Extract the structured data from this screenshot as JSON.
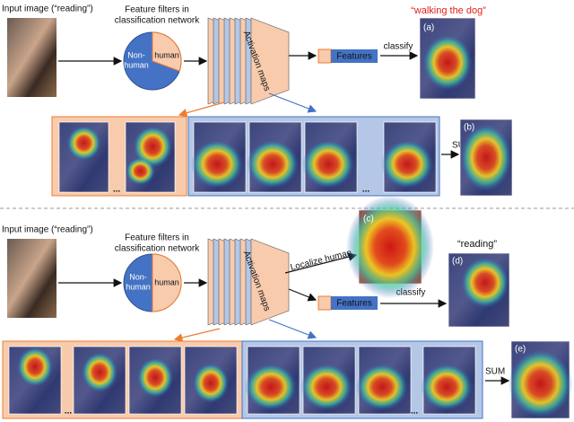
{
  "top": {
    "input_label": "Input image (“reading”)",
    "filters_label": [
      "Feature filters in",
      "classification network"
    ],
    "non_human": [
      "Non-",
      "human"
    ],
    "human": "human",
    "activation_label": "Activation maps",
    "features": "Features",
    "classify": "classify",
    "caption": "“walking the dog”",
    "label_a": "(a)",
    "label_b": "(b)",
    "sum": "SUM",
    "ellipsis": [
      "...",
      "..."
    ]
  },
  "bottom": {
    "input_label": "Input image (“reading”)",
    "filters_label": [
      "Feature filters in",
      "classification network"
    ],
    "non_human": [
      "Non-",
      "human"
    ],
    "human": "human",
    "activation_label": "Activation maps",
    "localize": "Localize human",
    "label_c": "(c)",
    "caption": "“reading”",
    "label_d": "(d)",
    "features": "Features",
    "classify": "classify",
    "label_e": "(e)",
    "sum": "SUM",
    "ellipsis": [
      "...",
      "..."
    ]
  }
}
